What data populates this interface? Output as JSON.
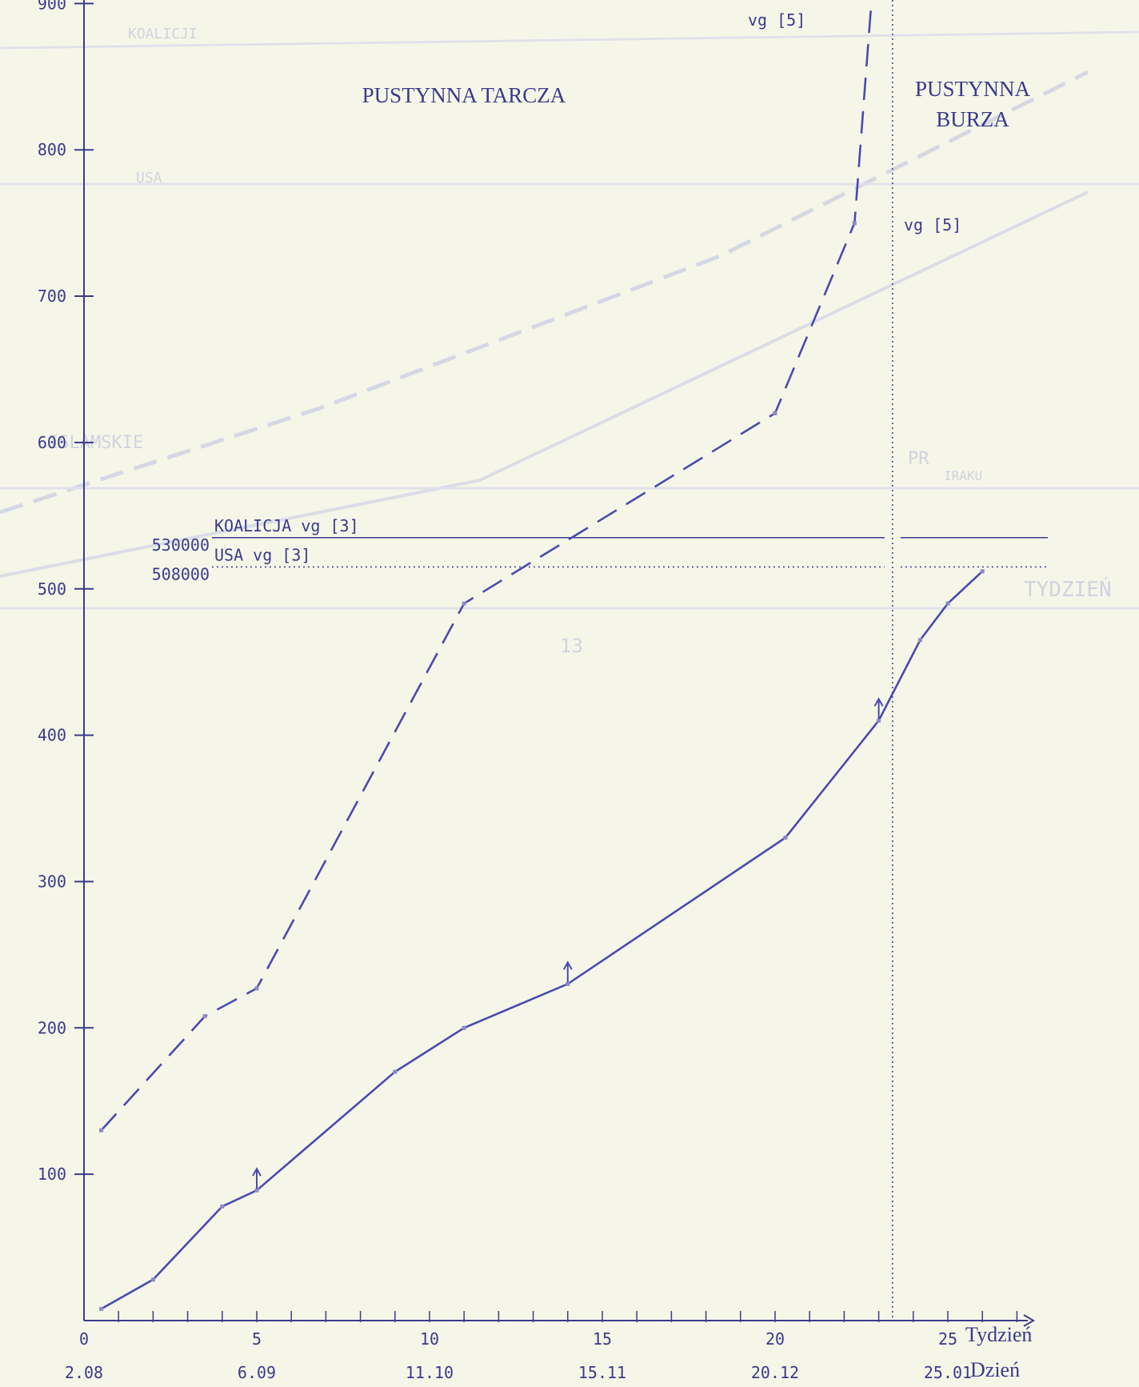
{
  "chart_data": {
    "type": "line",
    "y_ticks": [
      100,
      200,
      300,
      400,
      500,
      600,
      700,
      800,
      900
    ],
    "ylim": [
      0,
      920
    ],
    "x_ticks": [
      0,
      5,
      10,
      15,
      20,
      25
    ],
    "xlim": [
      0,
      27
    ],
    "x_unit_label": "Tydzień",
    "date_ticks": [
      {
        "week": 0,
        "label": "2.08"
      },
      {
        "week": 5,
        "label": "6.09"
      },
      {
        "week": 10,
        "label": "11.10"
      },
      {
        "week": 15,
        "label": "15.11"
      },
      {
        "week": 20,
        "label": "20.12"
      },
      {
        "week": 25,
        "label": "25.01"
      }
    ],
    "date_unit_label": "Dzień",
    "series": [
      {
        "style": "dashed",
        "x": [
          0.5,
          3.5,
          5,
          11,
          20,
          22.3,
          22.8
        ],
        "y": [
          130,
          208,
          227,
          490,
          620,
          750,
          905
        ]
      },
      {
        "style": "solid",
        "x": [
          0.5,
          2,
          4,
          5,
          9,
          11,
          14,
          20.3,
          23,
          24.2,
          25,
          26
        ],
        "y": [
          8,
          28,
          78,
          89,
          170,
          200,
          230,
          330,
          410,
          465,
          490,
          512
        ]
      }
    ],
    "reference_lines": [
      {
        "label": "KOALICJA vg [3]",
        "value_label": "530000",
        "y": 535,
        "style": "solid"
      },
      {
        "label": "USA vg [3]",
        "value_label": "508000",
        "y": 515,
        "style": "dotted"
      }
    ],
    "divider_week": 23.4,
    "regions": [
      "PUSTYNNA TARCZA",
      "PUSTYNNA",
      "BURZA"
    ],
    "annotations": [
      "vg [5]",
      "vg [5]"
    ],
    "arrow_markers": [
      {
        "x": 5,
        "y": 89
      },
      {
        "x": 14,
        "y": 230
      },
      {
        "x": 23,
        "y": 410
      }
    ],
    "line_color": "#4a4ab0"
  },
  "ghost_text": [
    "KOALICJI",
    "USA",
    "ISLAMSKIE",
    "PR",
    "IRAKU",
    "TYDZIEŃ",
    "13"
  ]
}
